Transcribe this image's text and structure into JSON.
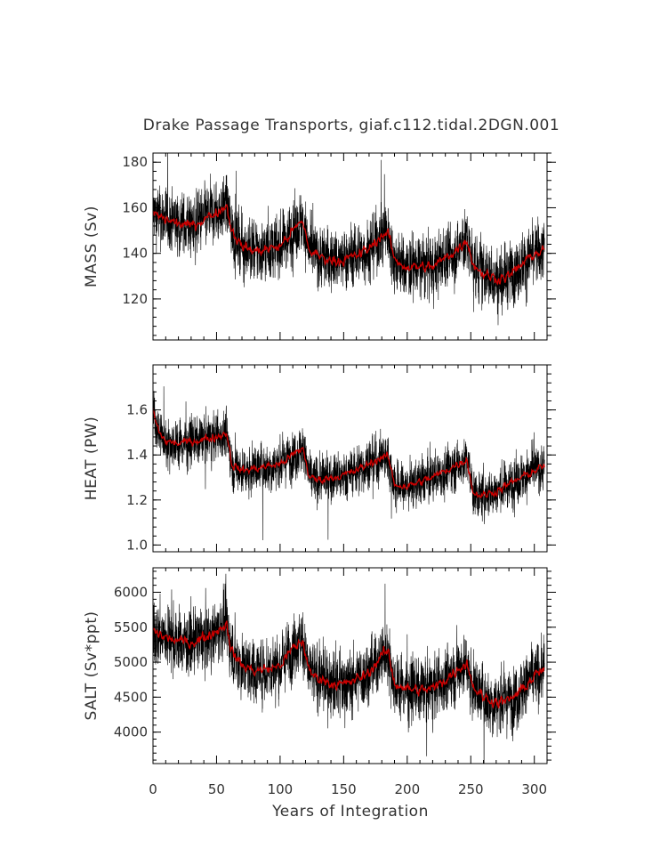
{
  "chart_data": {
    "type": "line",
    "title": "Drake Passage Transports, giaf.c112.tidal.2DGN.001",
    "xlabel": "Years of Integration",
    "x_range": [
      0,
      310
    ],
    "x_ticks": [
      0,
      50,
      100,
      150,
      200,
      250,
      300
    ],
    "colors": {
      "raw": "#000000",
      "smoothed": "#cc0000"
    },
    "panels": [
      {
        "ylabel": "MASS (Sv)",
        "ylim": [
          102,
          184
        ],
        "y_ticks": [
          120,
          140,
          160,
          180
        ],
        "y_tick_labels": [
          "120",
          "140",
          "160",
          "180"
        ],
        "smoothed_x": [
          0,
          5,
          10,
          20,
          30,
          40,
          50,
          58,
          62,
          70,
          80,
          90,
          100,
          110,
          118,
          123,
          130,
          140,
          150,
          160,
          170,
          180,
          185,
          190,
          200,
          210,
          220,
          230,
          240,
          247,
          252,
          260,
          270,
          280,
          290,
          300,
          308
        ],
        "smoothed_y": [
          158,
          156,
          155,
          153,
          152,
          155,
          158,
          161,
          150,
          143,
          141,
          142,
          143,
          150,
          154,
          141,
          139,
          137,
          137,
          139,
          142,
          148,
          149,
          137,
          134,
          134,
          134,
          138,
          142,
          146,
          135,
          131,
          129,
          130,
          135,
          140,
          141
        ],
        "noise_amplitude": 9
      },
      {
        "ylabel": "HEAT (PW)",
        "ylim": [
          0.97,
          1.8
        ],
        "y_ticks": [
          1.0,
          1.2,
          1.4,
          1.6
        ],
        "y_tick_labels": [
          "1.0",
          "1.2",
          "1.4",
          "1.6"
        ],
        "smoothed_x": [
          0,
          2,
          5,
          10,
          20,
          30,
          40,
          50,
          58,
          62,
          70,
          80,
          90,
          100,
          110,
          118,
          123,
          130,
          140,
          150,
          160,
          170,
          180,
          185,
          190,
          200,
          210,
          220,
          230,
          240,
          247,
          252,
          260,
          270,
          280,
          290,
          300,
          308
        ],
        "smoothed_y": [
          1.6,
          1.55,
          1.5,
          1.46,
          1.45,
          1.46,
          1.47,
          1.48,
          1.5,
          1.36,
          1.33,
          1.34,
          1.35,
          1.36,
          1.4,
          1.43,
          1.3,
          1.29,
          1.3,
          1.31,
          1.33,
          1.36,
          1.39,
          1.39,
          1.27,
          1.26,
          1.28,
          1.3,
          1.33,
          1.36,
          1.38,
          1.23,
          1.22,
          1.24,
          1.27,
          1.3,
          1.33,
          1.35
        ],
        "noise_amplitude": 0.07
      },
      {
        "ylabel": "SALT (Sv*ppt)",
        "ylim": [
          3550,
          6350
        ],
        "y_ticks": [
          4000,
          4500,
          5000,
          5500,
          6000
        ],
        "y_tick_labels": [
          "4000",
          "4500",
          "5000",
          "5500",
          "6000"
        ],
        "smoothed_x": [
          0,
          5,
          10,
          20,
          30,
          40,
          50,
          58,
          62,
          70,
          80,
          90,
          100,
          110,
          118,
          123,
          130,
          140,
          150,
          160,
          170,
          180,
          185,
          190,
          200,
          210,
          220,
          230,
          240,
          247,
          252,
          260,
          270,
          280,
          290,
          300,
          308
        ],
        "smoothed_y": [
          5450,
          5400,
          5350,
          5300,
          5280,
          5350,
          5450,
          5550,
          5150,
          4950,
          4880,
          4900,
          4950,
          5200,
          5300,
          4850,
          4780,
          4700,
          4680,
          4750,
          4850,
          5100,
          5150,
          4700,
          4620,
          4600,
          4620,
          4750,
          4900,
          5000,
          4650,
          4500,
          4430,
          4450,
          4600,
          4800,
          4900
        ],
        "noise_amplitude": 300
      }
    ]
  }
}
